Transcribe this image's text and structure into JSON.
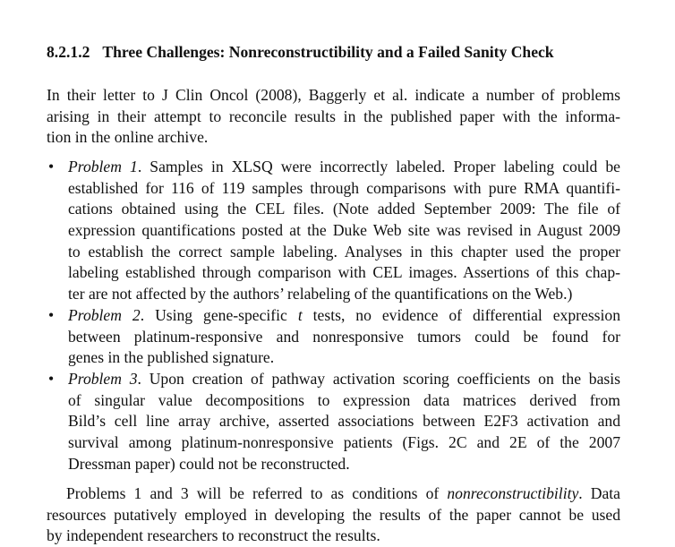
{
  "heading": {
    "number": "8.2.1.2",
    "title": "Three Challenges: Nonreconstructibility and a Failed Sanity Check"
  },
  "intro": {
    "lines": [
      [
        "In their letter to J Clin Oncol (2008), Baggerly et al. indicate a number of problems"
      ],
      [
        "arising in their attempt to reconcile results in the published paper with the informa-"
      ],
      [
        "tion in the online archive."
      ]
    ]
  },
  "problems": [
    {
      "label": "Problem 1",
      "lines": [
        [
          ". Samples in XLSQ were incorrectly labeled. Proper labeling could be"
        ],
        [
          "established for 116 of 119 samples through comparisons with pure RMA quantifi-"
        ],
        [
          "cations obtained using the CEL files. (Note added September 2009: The file of"
        ],
        [
          "expression quantifications posted at the Duke Web site was revised in August 2009"
        ],
        [
          "to establish the correct sample labeling. Analyses in this chapter used the proper"
        ],
        [
          "labeling established through comparison with CEL images. Assertions of this chap-"
        ],
        [
          "ter are not affected by the authors’ relabeling of the quantifications on the Web.)"
        ]
      ]
    },
    {
      "label": "Problem 2",
      "lines": [
        [
          ". Using gene-specific ",
          "t",
          " tests, no evidence of differential expression"
        ],
        [
          "between platinum-responsive and nonresponsive tumors could be found for"
        ],
        [
          "genes in the published signature."
        ]
      ]
    },
    {
      "label": "Problem 3",
      "lines": [
        [
          ". Upon creation of pathway activation scoring coefficients on the basis"
        ],
        [
          "of singular value decompositions to expression data matrices derived from"
        ],
        [
          "Bild’s cell line array archive, asserted associations between E2F3 activation and"
        ],
        [
          "survival among platinum-nonresponsive patients (Figs. 2C and 2E of the 2007"
        ],
        [
          "Dressman paper) could not be reconstructed."
        ]
      ]
    }
  ],
  "bullet": "•",
  "conclusion": {
    "lines": [
      [
        "Problems 1 and 3 will be referred to as conditions of ",
        "nonreconstructibility",
        ". Data"
      ],
      [
        "resources putatively employed in developing the results of the paper cannot be used"
      ],
      [
        "by independent researchers to reconstruct the results."
      ]
    ]
  }
}
